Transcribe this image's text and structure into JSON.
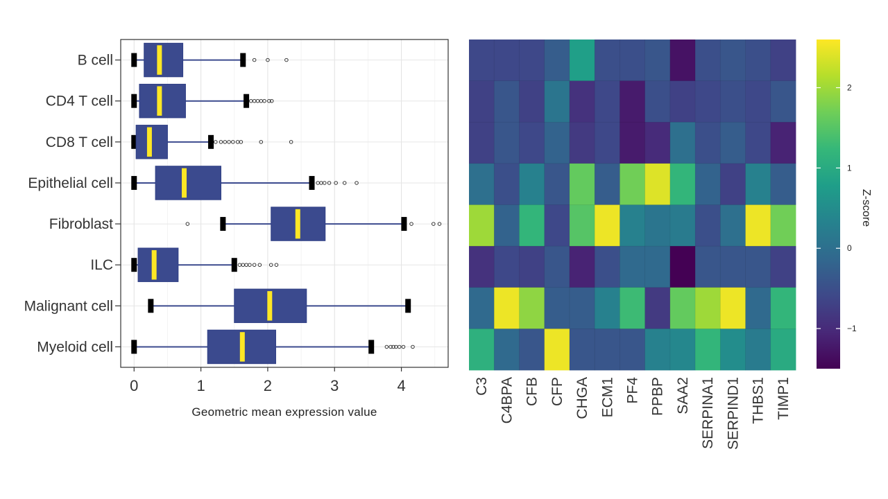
{
  "chart_data": [
    {
      "type": "boxplot",
      "orientation": "horizontal",
      "xlabel": "Geometric mean expression value",
      "xlim": [
        -0.2,
        4.7
      ],
      "x_ticks": [
        "0",
        "1",
        "2",
        "3",
        "4"
      ],
      "x_tick_values": [
        0,
        1,
        2,
        3,
        4
      ],
      "grid": true,
      "box_color": "#3b4a8e",
      "median_color": "#fde725",
      "categories": [
        "B cell",
        "CD4 T cell",
        "CD8 T cell",
        "Epithelial cell",
        "Fibroblast",
        "ILC",
        "Malignant cell",
        "Myeloid cell"
      ],
      "boxes": [
        {
          "min": 0.0,
          "q1": 0.15,
          "median": 0.38,
          "q3": 0.73,
          "max": 1.63,
          "outliers": [
            1.8,
            2.0,
            2.28
          ]
        },
        {
          "min": 0.0,
          "q1": 0.08,
          "median": 0.38,
          "q3": 0.77,
          "max": 1.68,
          "outliers": [
            1.75,
            1.8,
            1.85,
            1.9,
            1.95,
            2.02,
            2.06
          ]
        },
        {
          "min": 0.0,
          "q1": 0.03,
          "median": 0.23,
          "q3": 0.5,
          "max": 1.15,
          "outliers": [
            1.22,
            1.3,
            1.36,
            1.42,
            1.48,
            1.55,
            1.6,
            1.9,
            2.35
          ]
        },
        {
          "min": 0.0,
          "q1": 0.32,
          "median": 0.75,
          "q3": 1.3,
          "max": 2.66,
          "outliers": [
            2.75,
            2.8,
            2.85,
            2.92,
            3.02,
            3.15,
            3.33
          ]
        },
        {
          "min": 1.33,
          "q1": 2.05,
          "median": 2.45,
          "q3": 2.86,
          "max": 4.04,
          "outliers": [
            0.8,
            4.15,
            4.48,
            4.57
          ]
        },
        {
          "min": 0.0,
          "q1": 0.06,
          "median": 0.3,
          "q3": 0.66,
          "max": 1.5,
          "outliers": [
            1.58,
            1.63,
            1.68,
            1.73,
            1.8,
            1.88,
            2.05,
            2.13
          ]
        },
        {
          "min": 0.25,
          "q1": 1.5,
          "median": 2.03,
          "q3": 2.58,
          "max": 4.1,
          "outliers": []
        },
        {
          "min": 0.0,
          "q1": 1.1,
          "median": 1.62,
          "q3": 2.12,
          "max": 3.55,
          "outliers": [
            3.78,
            3.84,
            3.88,
            3.92,
            3.97,
            4.03,
            4.17
          ]
        }
      ]
    },
    {
      "type": "heatmap",
      "colormap": "viridis",
      "zmin": -1.5,
      "zmax": 2.6,
      "colorbar_title": "Z-score",
      "colorbar_ticks": [
        "2",
        "1",
        "0",
        "−1"
      ],
      "colorbar_tick_values": [
        2,
        1,
        0,
        -1
      ],
      "rows": [
        "B cell",
        "CD4 T cell",
        "CD8 T cell",
        "Epithelial cell",
        "Fibroblast",
        "ILC",
        "Malignant cell",
        "Myeloid cell"
      ],
      "columns": [
        "C3",
        "C4BPA",
        "CFB",
        "CFP",
        "CHGA",
        "ECM1",
        "PF4",
        "PPBP",
        "SAA2",
        "SERPINA1",
        "SERPIND1",
        "THBS1",
        "TIMP1"
      ],
      "values": [
        [
          -0.6,
          -0.6,
          -0.6,
          -0.3,
          0.8,
          -0.5,
          -0.5,
          -0.4,
          -1.3,
          -0.5,
          -0.4,
          -0.5,
          -0.7
        ],
        [
          -0.7,
          -0.4,
          -0.7,
          0.1,
          -0.9,
          -0.6,
          -1.2,
          -0.5,
          -0.7,
          -0.6,
          -0.5,
          -0.6,
          -0.4
        ],
        [
          -0.7,
          -0.4,
          -0.6,
          -0.2,
          -0.8,
          -0.6,
          -1.2,
          -1.0,
          0.0,
          -0.5,
          -0.3,
          -0.6,
          -1.1
        ],
        [
          0.0,
          -0.5,
          0.3,
          -0.4,
          1.6,
          -0.3,
          1.7,
          2.4,
          1.2,
          -0.2,
          -0.7,
          0.3,
          -0.3
        ],
        [
          2.0,
          -0.2,
          1.2,
          -0.6,
          1.5,
          2.5,
          0.3,
          0.1,
          0.2,
          -0.5,
          0.0,
          2.5,
          1.7
        ],
        [
          -0.9,
          -0.6,
          -0.7,
          -0.4,
          -1.1,
          -0.5,
          -0.1,
          -0.1,
          -1.5,
          -0.4,
          -0.4,
          -0.4,
          -0.7
        ],
        [
          -0.1,
          2.5,
          1.9,
          -0.3,
          -0.3,
          0.3,
          1.3,
          -0.8,
          1.6,
          2.0,
          2.5,
          -0.1,
          1.2
        ],
        [
          1.1,
          -0.1,
          -0.4,
          2.5,
          -0.4,
          -0.4,
          -0.4,
          0.3,
          0.4,
          1.2,
          0.5,
          0.2,
          1.0
        ]
      ]
    }
  ]
}
